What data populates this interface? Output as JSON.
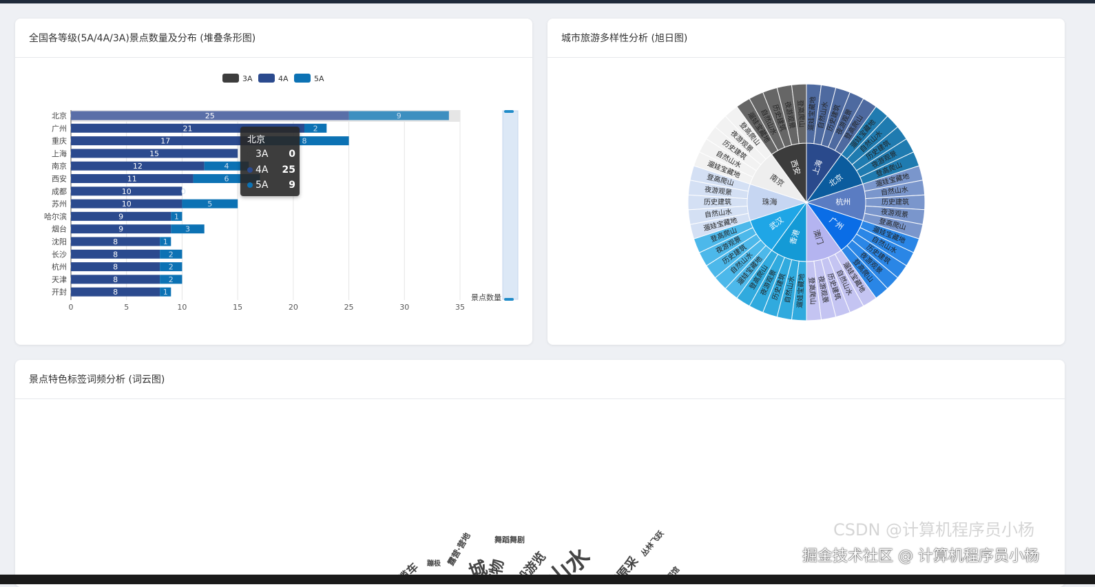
{
  "cards": {
    "bar_title": "全国各等级(5A/4A/3A)景点数量及分布 (堆叠条形图)",
    "sunburst_title": "城市旅游多样性分析 (旭日图)",
    "cloud_title": "景点特色标签词频分析 (词云图)"
  },
  "chart_data": [
    {
      "type": "bar",
      "orientation": "horizontal",
      "stacked": true,
      "categories": [
        "北京",
        "广州",
        "重庆",
        "上海",
        "南京",
        "西安",
        "成都",
        "苏州",
        "哈尔滨",
        "烟台",
        "沈阳",
        "长沙",
        "杭州",
        "天津",
        "开封"
      ],
      "series": [
        {
          "name": "3A",
          "color": "#3d3d3d",
          "values": [
            0,
            0,
            0,
            0,
            0,
            0,
            0,
            0,
            0,
            0,
            0,
            0,
            0,
            0,
            0
          ]
        },
        {
          "name": "4A",
          "color": "#2b4a8e",
          "values": [
            25,
            21,
            17,
            15,
            12,
            11,
            10,
            10,
            9,
            9,
            8,
            8,
            8,
            8,
            8
          ]
        },
        {
          "name": "5A",
          "color": "#0c72b4",
          "values": [
            9,
            2,
            8,
            null,
            4,
            6,
            0,
            5,
            1,
            3,
            1,
            2,
            2,
            2,
            1
          ]
        }
      ],
      "xlim": [
        0,
        35
      ],
      "xticks": [
        0,
        5,
        10,
        15,
        20,
        25,
        30,
        35
      ],
      "grid": true,
      "legend": "top-center",
      "datazoom_label": "景点数量",
      "tooltip": {
        "title": "北京",
        "rows": [
          {
            "name": "3A",
            "value": "0"
          },
          {
            "name": "4A",
            "value": "25"
          },
          {
            "name": "5A",
            "value": "9"
          }
        ]
      }
    },
    {
      "type": "sunburst",
      "cities": [
        {
          "name": "上海",
          "color": "#2a4a8c",
          "outer": "#4e6aa0"
        },
        {
          "name": "北京",
          "color": "#0b5c9e",
          "outer": "#1f7bb0"
        },
        {
          "name": "杭州",
          "color": "#5a7cc2",
          "outer": "#7a96cc"
        },
        {
          "name": "广州",
          "color": "#0a6de6",
          "outer": "#2a86e6"
        },
        {
          "name": "澳门",
          "color": "#b4b4f0",
          "outer": "#c4c4f2"
        },
        {
          "name": "香港",
          "color": "#149ad6",
          "outer": "#30aade"
        },
        {
          "name": "武汉",
          "color": "#1fa6e6",
          "outer": "#4cb8ea"
        },
        {
          "name": "珠海",
          "color": "#c6d6f2",
          "outer": "#d4e0f4"
        },
        {
          "name": "南京",
          "color": "#eeeeee",
          "outer": "#f2f2f2"
        },
        {
          "name": "西安",
          "color": "#3c3c3c",
          "outer": "#666666"
        }
      ],
      "children": [
        "遛娃宝藏地",
        "自然山水",
        "历史建筑",
        "夜游观景",
        "登高爬山"
      ]
    },
    {
      "type": "wordcloud",
      "words": [
        {
          "text": "舞蹈舞剧",
          "size": 11
        },
        {
          "text": "露营·营地",
          "size": 12
        },
        {
          "text": "乘船游览",
          "size": 18
        },
        {
          "text": "山水",
          "size": 34
        },
        {
          "text": "草原采",
          "size": 18
        },
        {
          "text": "丛林飞跃",
          "size": 11
        },
        {
          "text": "蹦极",
          "size": 10
        },
        {
          "text": "博物",
          "size": 22
        },
        {
          "text": "城",
          "size": 26
        },
        {
          "text": "缆车",
          "size": 16
        },
        {
          "text": "探馆",
          "size": 11
        }
      ]
    }
  ],
  "watermark": "掘金技术社区 @ 计算机程序员小杨",
  "watermark2": "CSDN @计算机程序员小杨"
}
